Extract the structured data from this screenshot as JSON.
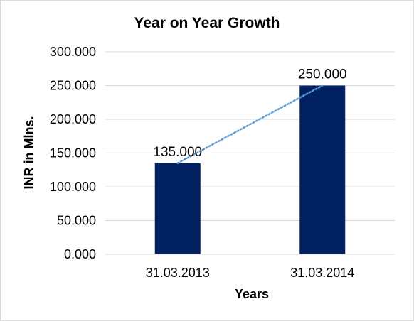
{
  "chart_data": {
    "type": "bar",
    "title": "Year on Year Growth",
    "xlabel": "Years",
    "ylabel": "INR in Mlns.",
    "categories": [
      "31.03.2013",
      "31.03.2014"
    ],
    "values": [
      135,
      250
    ],
    "value_labels": [
      "135.000",
      "250.000"
    ],
    "ylim": [
      0,
      300
    ],
    "y_ticks": [
      0,
      50,
      100,
      150,
      200,
      250,
      300
    ],
    "y_tick_labels": [
      "0.000",
      "50.000",
      "100.000",
      "150.000",
      "200.000",
      "250.000",
      "300.000"
    ],
    "grid": true,
    "legend": "none",
    "trendline": "linear-dotted",
    "colors": {
      "bar": "#002060",
      "trendline": "#5b9bd5",
      "grid": "#d9d9d9",
      "axis": "#d9d9d9"
    }
  }
}
